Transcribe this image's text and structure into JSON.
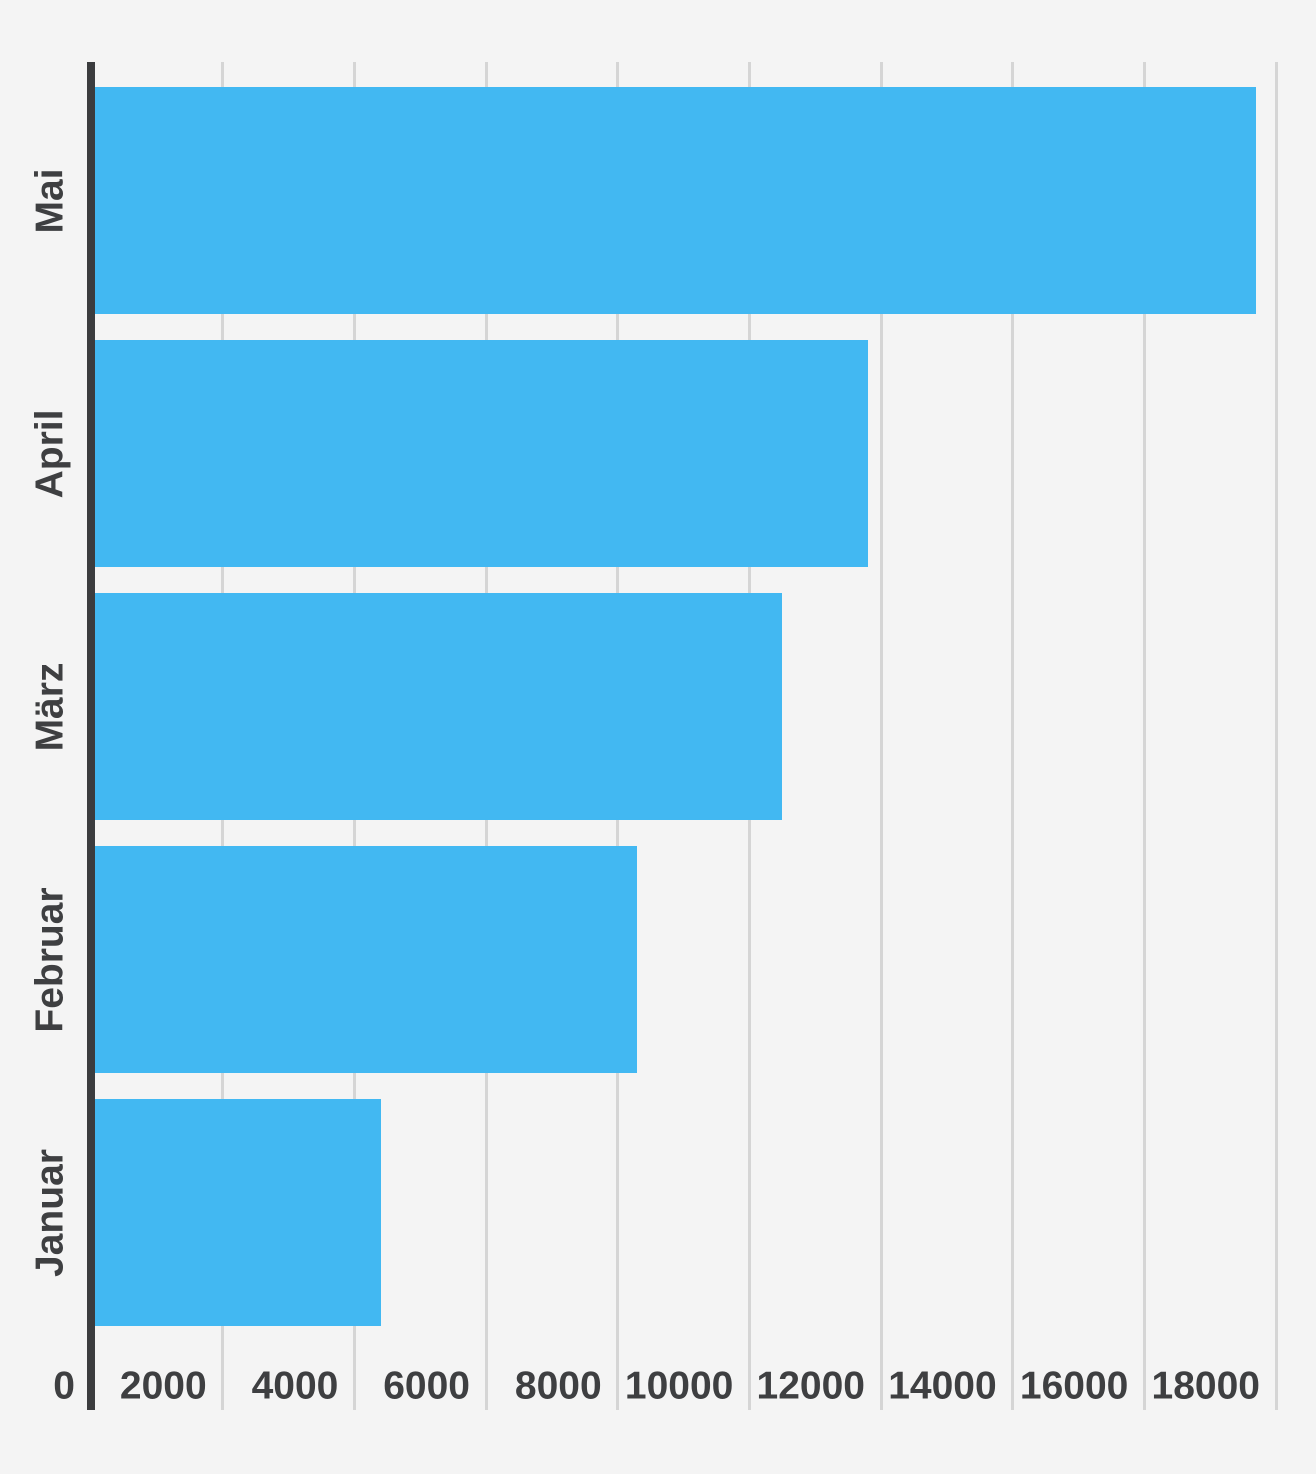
{
  "chart_data": {
    "type": "bar",
    "orientation": "horizontal",
    "title": "",
    "xlabel": "",
    "ylabel": "",
    "categories": [
      "Mai",
      "April",
      "März",
      "Februar",
      "Januar"
    ],
    "values": [
      17700,
      11800,
      10500,
      8300,
      4400
    ],
    "x_ticks": [
      0,
      2000,
      4000,
      6000,
      8000,
      10000,
      12000,
      14000,
      16000,
      18000
    ],
    "x_tick_labels": [
      "0",
      "2000",
      "4000",
      "6000",
      "8000",
      "10000",
      "12000",
      "14000",
      "16000",
      "18000"
    ],
    "xlim": [
      0,
      18000
    ],
    "grid": true,
    "legend": false,
    "colors": {
      "bar": "#42b8f2",
      "background": "#f4f4f4",
      "gridline": "#d5d5d5",
      "axis_line": "#3b3c3e",
      "tick_label": "#3e3f41",
      "category_label": "#3e3f41"
    }
  }
}
